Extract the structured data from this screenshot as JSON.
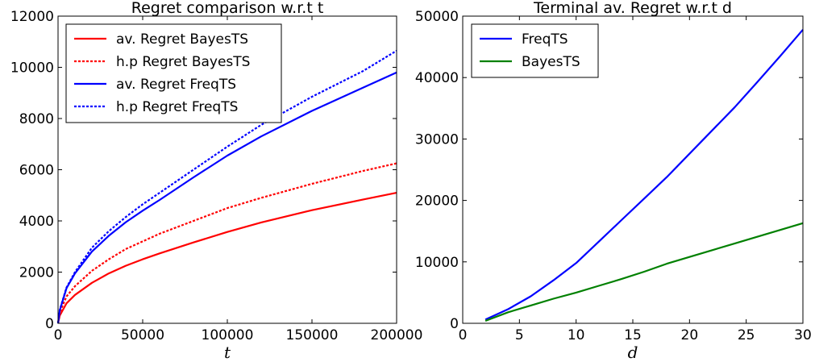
{
  "chart_data": [
    {
      "type": "line",
      "title": "Regret comparison w.r.t t",
      "xlabel": "t",
      "ylabel": "",
      "xlim": [
        0,
        200000
      ],
      "ylim": [
        0,
        12000
      ],
      "xticks": [
        "0",
        "50000",
        "100000",
        "150000",
        "200000"
      ],
      "yticks": [
        "0",
        "2000",
        "4000",
        "6000",
        "8000",
        "10000",
        "12000"
      ],
      "grid": false,
      "legend": "top-left",
      "x": [
        0,
        1000,
        5000,
        10000,
        20000,
        30000,
        40000,
        50000,
        60000,
        80000,
        100000,
        120000,
        150000,
        180000,
        200000
      ],
      "series": [
        {
          "name": "av. Regret BayesTS",
          "color": "#ff0000",
          "dash": "solid",
          "values": [
            0,
            300,
            780,
            1110,
            1580,
            1950,
            2250,
            2500,
            2730,
            3160,
            3570,
            3940,
            4420,
            4830,
            5100
          ]
        },
        {
          "name": "h.p Regret BayesTS",
          "color": "#ff0000",
          "dash": "dotted",
          "values": [
            0,
            420,
            1050,
            1450,
            2050,
            2500,
            2900,
            3200,
            3500,
            4000,
            4500,
            4900,
            5450,
            5950,
            6250
          ]
        },
        {
          "name": "av. Regret FreqTS",
          "color": "#0000ff",
          "dash": "solid",
          "values": [
            0,
            500,
            1370,
            1950,
            2800,
            3420,
            3950,
            4400,
            4820,
            5700,
            6550,
            7300,
            8300,
            9200,
            9800
          ]
        },
        {
          "name": "h.p Regret FreqTS",
          "color": "#0000ff",
          "dash": "dotted",
          "values": [
            0,
            520,
            1400,
            2000,
            2950,
            3600,
            4150,
            4650,
            5100,
            6000,
            6900,
            7750,
            8850,
            9850,
            10650
          ]
        }
      ]
    },
    {
      "type": "line",
      "title": "Terminal av. Regret w.r.t d",
      "xlabel": "d",
      "ylabel": "",
      "xlim": [
        0,
        30
      ],
      "ylim": [
        0,
        50000
      ],
      "xticks": [
        "0",
        "5",
        "10",
        "15",
        "20",
        "25",
        "30"
      ],
      "yticks": [
        "0",
        "10000",
        "20000",
        "30000",
        "40000",
        "50000"
      ],
      "grid": false,
      "legend": "top-left",
      "x": [
        2,
        4,
        6,
        8,
        10,
        12,
        14,
        16,
        18,
        20,
        22,
        24,
        26,
        28,
        30
      ],
      "series": [
        {
          "name": "FreqTS",
          "color": "#0000ff",
          "dash": "solid",
          "values": [
            600,
            2300,
            4400,
            7000,
            9800,
            13300,
            16800,
            20300,
            23800,
            27600,
            31400,
            35200,
            39300,
            43500,
            47800
          ]
        },
        {
          "name": "BayesTS",
          "color": "#008000",
          "dash": "solid",
          "values": [
            400,
            1800,
            2900,
            4000,
            5000,
            6100,
            7200,
            8400,
            9700,
            10800,
            11900,
            13000,
            14100,
            15200,
            16300
          ]
        }
      ]
    }
  ]
}
